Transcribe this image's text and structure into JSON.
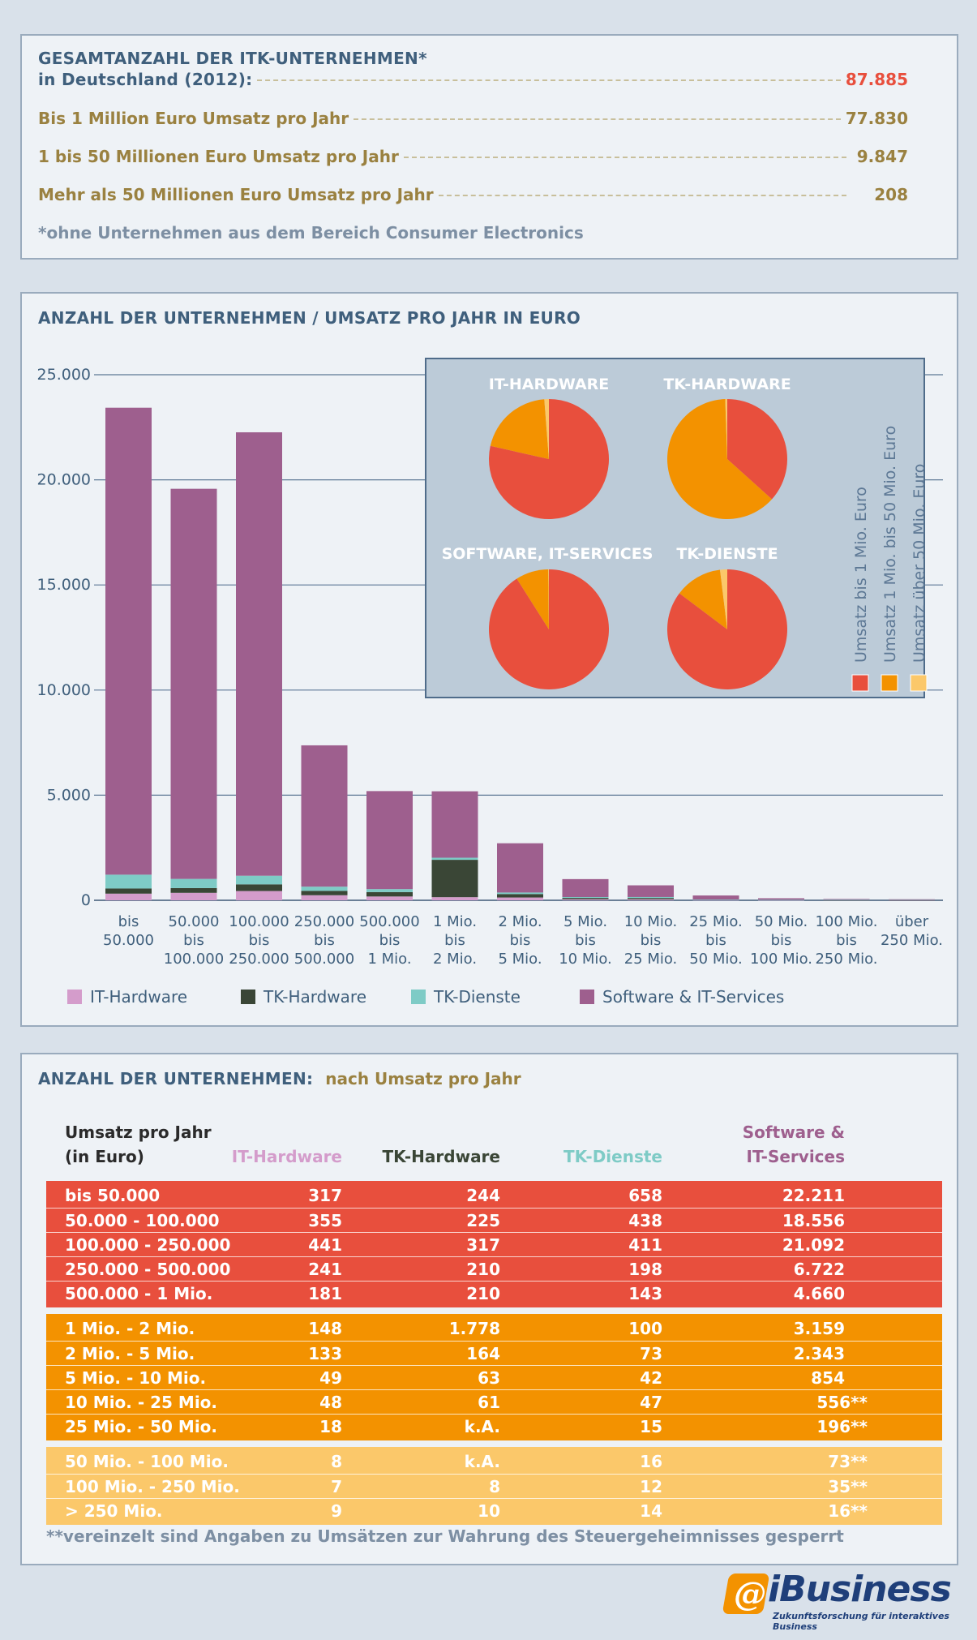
{
  "summary": {
    "title_line1": "GESAMTANZAHL DER ITK-UNTERNEHMEN*",
    "title_line2": "in Deutschland (2012):",
    "total": "87.885",
    "rows": [
      {
        "label": "Bis 1 Million Euro Umsatz pro Jahr",
        "value": "77.830"
      },
      {
        "label": "1 bis 50 Millionen Euro Umsatz pro Jahr",
        "value": "9.847"
      },
      {
        "label": "Mehr als 50 Millionen Euro Umsatz pro Jahr",
        "value": "208"
      }
    ],
    "footnote": "*ohne Unternehmen aus dem Bereich Consumer Electronics"
  },
  "chart_section": {
    "title": "ANZAHL DER UNTERNEHMEN / UMSATZ PRO JAHR IN EURO"
  },
  "colors": {
    "it_hardware": "#d49ccb",
    "tk_hardware": "#3a4636",
    "tk_dienste": "#7ecbc6",
    "software": "#9e5f8e",
    "red": "#e84f3d",
    "orange": "#f39200",
    "light_orange": "#fbc86a"
  },
  "chart_data": [
    {
      "type": "bar",
      "stacked": true,
      "ylim": [
        0,
        25000
      ],
      "yticks": [
        "0",
        "5.000",
        "10.000",
        "15.000",
        "20.000",
        "25.000"
      ],
      "ytick_values": [
        0,
        5000,
        10000,
        15000,
        20000,
        25000
      ],
      "categories": [
        [
          "bis",
          "50.000"
        ],
        [
          "50.000",
          "bis",
          "100.000"
        ],
        [
          "100.000",
          "bis",
          "250.000"
        ],
        [
          "250.000",
          "bis",
          "500.000"
        ],
        [
          "500.000",
          "bis",
          "1 Mio."
        ],
        [
          "1 Mio.",
          "bis",
          "2 Mio."
        ],
        [
          "2 Mio.",
          "bis",
          "5 Mio."
        ],
        [
          "5 Mio.",
          "bis",
          "10 Mio."
        ],
        [
          "10 Mio.",
          "bis",
          "25 Mio."
        ],
        [
          "25 Mio.",
          "bis",
          "50 Mio."
        ],
        [
          "50 Mio.",
          "bis",
          "100 Mio."
        ],
        [
          "100 Mio.",
          "bis",
          "250 Mio."
        ],
        [
          "über",
          "250 Mio."
        ]
      ],
      "series": [
        {
          "name": "IT-Hardware",
          "color": "#d49ccb",
          "values": [
            317,
            355,
            441,
            241,
            181,
            148,
            133,
            49,
            48,
            18,
            8,
            7,
            9
          ]
        },
        {
          "name": "TK-Hardware",
          "color": "#3a4636",
          "values": [
            244,
            225,
            317,
            210,
            210,
            1778,
            164,
            63,
            61,
            0,
            0,
            8,
            10
          ]
        },
        {
          "name": "TK-Dienste",
          "color": "#7ecbc6",
          "values": [
            658,
            438,
            411,
            198,
            143,
            100,
            73,
            42,
            47,
            15,
            16,
            12,
            14
          ]
        },
        {
          "name": "Software & IT-Services",
          "color": "#9e5f8e",
          "values": [
            22211,
            18556,
            21092,
            6722,
            4660,
            3159,
            2343,
            854,
            556,
            196,
            73,
            35,
            16
          ]
        }
      ],
      "legend": "bottom",
      "grid": true
    },
    {
      "type": "pie",
      "title": "IT-HARDWARE",
      "labels": [
        "Umsatz bis 1 Mio. Euro",
        "Umsatz 1 Mio. bis 50 Mio. Euro",
        "Umsatz über 50 Mio. Euro"
      ],
      "values": [
        1535,
        396,
        24
      ]
    },
    {
      "type": "pie",
      "title": "TK-HARDWARE",
      "labels": [
        "Umsatz bis 1 Mio. Euro",
        "Umsatz 1 Mio. bis 50 Mio. Euro",
        "Umsatz über 50 Mio. Euro"
      ],
      "values": [
        1206,
        2066,
        18
      ]
    },
    {
      "type": "pie",
      "title": "SOFTWARE, IT-SERVICES",
      "labels": [
        "Umsatz bis 1 Mio. Euro",
        "Umsatz 1 Mio. bis 50 Mio. Euro",
        "Umsatz über 50 Mio. Euro"
      ],
      "values": [
        73241,
        7108,
        124
      ]
    },
    {
      "type": "pie",
      "title": "TK-DIENSTE",
      "labels": [
        "Umsatz bis 1 Mio. Euro",
        "Umsatz 1 Mio. bis 50 Mio. Euro",
        "Umsatz über 50 Mio. Euro"
      ],
      "values": [
        1848,
        277,
        42
      ]
    },
    {
      "type": "table",
      "title": "ANZAHL DER UNTERNEHMEN:",
      "subtitle": "nach Umsatz pro Jahr",
      "header_row_label": [
        "Umsatz pro Jahr",
        "(in Euro)"
      ],
      "columns": [
        "IT-Hardware",
        "TK-Hardware",
        "TK-Dienste",
        "Software & IT-Services"
      ],
      "column_lines": [
        [
          "",
          "IT-Hardware"
        ],
        [
          "",
          "TK-Hardware"
        ],
        [
          "",
          "TK-Dienste"
        ],
        [
          "Software &",
          "IT-Services"
        ]
      ],
      "groups": [
        {
          "color": "#e84f3d",
          "rows": [
            [
              "bis 50.000",
              "317",
              "244",
              "658",
              "22.211"
            ],
            [
              "50.000 - 100.000",
              "355",
              "225",
              "438",
              "18.556"
            ],
            [
              "100.000 - 250.000",
              "441",
              "317",
              "411",
              "21.092"
            ],
            [
              "250.000 - 500.000",
              "241",
              "210",
              "198",
              "6.722"
            ],
            [
              "500.000 - 1 Mio.",
              "181",
              "210",
              "143",
              "4.660"
            ]
          ]
        },
        {
          "color": "#f39200",
          "rows": [
            [
              "1 Mio. - 2 Mio.",
              "148",
              "1.778",
              "100",
              "3.159"
            ],
            [
              "2 Mio. - 5 Mio.",
              "133",
              "164",
              "73",
              "2.343"
            ],
            [
              "5 Mio. - 10 Mio.",
              "49",
              "63",
              "42",
              "854"
            ],
            [
              "10 Mio. - 25 Mio.",
              "48",
              "61",
              "47",
              "556**"
            ],
            [
              "25 Mio. - 50 Mio.",
              "18",
              "k.A.",
              "15",
              "196**"
            ]
          ]
        },
        {
          "color": "#fbc86a",
          "rows": [
            [
              "50 Mio. - 100 Mio.",
              "8",
              "k.A.",
              "16",
              "73**"
            ],
            [
              "100 Mio. - 250 Mio.",
              "7",
              "8",
              "12",
              "35**"
            ],
            [
              "> 250 Mio.",
              "9",
              "10",
              "14",
              "16**"
            ]
          ]
        }
      ],
      "footnote": "**vereinzelt sind Angaben zu Umsätzen zur Wahrung des Steuergeheimnisses gesperrt"
    }
  ],
  "logo": {
    "name": "iBusiness",
    "tagline": "Zukunftsforschung für interaktives Business"
  }
}
